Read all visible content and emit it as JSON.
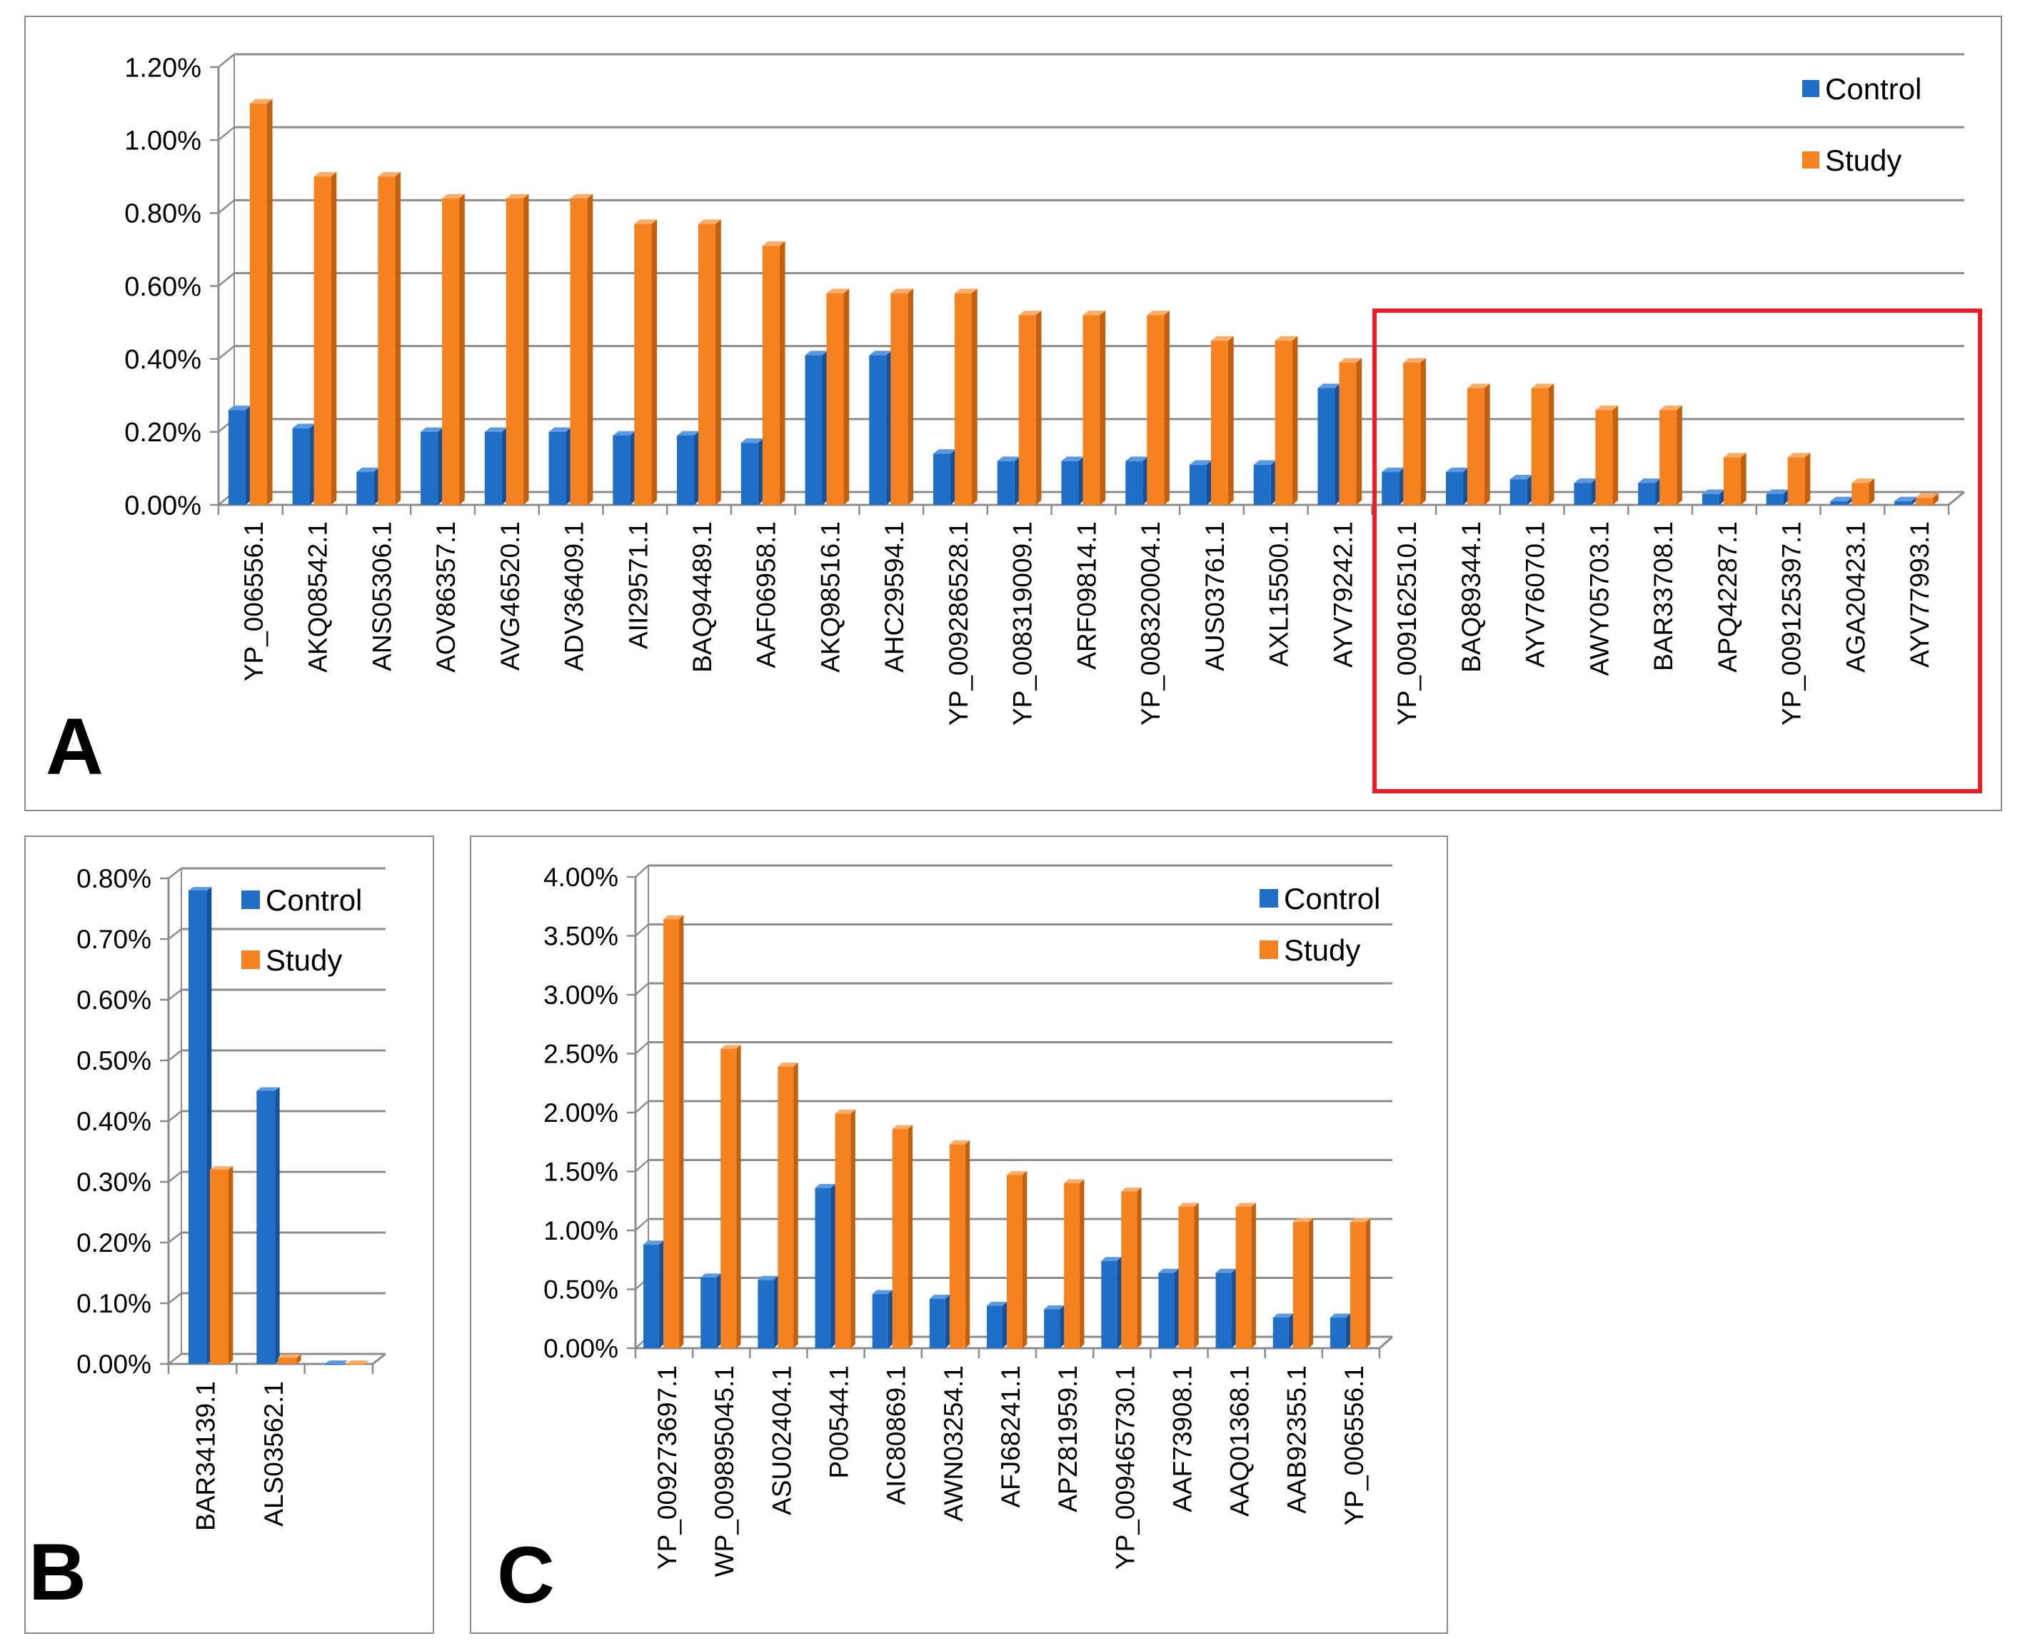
{
  "colors": {
    "control": "#1f6fc8",
    "control_side": "#15509a",
    "control_top": "#5a9ae0",
    "study": "#f5821f",
    "study_side": "#c45f0c",
    "study_top": "#f9ad68",
    "grid": "#8c8c8c",
    "highlight": "#ee1c25"
  },
  "chart_data": [
    {
      "id": "A",
      "type": "bar",
      "panel_label": "A",
      "title": "",
      "xlabel": "",
      "ylabel": "",
      "ylim": [
        0,
        0.012
      ],
      "yticks": [
        "0.00%",
        "0.20%",
        "0.40%",
        "0.60%",
        "0.80%",
        "1.00%",
        "1.20%"
      ],
      "legend": [
        "Control",
        "Study"
      ],
      "legend_position": "top-right",
      "categories": [
        "YP_006556.1",
        "AKQ08542.1",
        "ANS05306.1",
        "AOV86357.1",
        "AVG46520.1",
        "ADV36409.1",
        "AII29571.1",
        "BAQ94489.1",
        "AAF06958.1",
        "AKQ98516.1",
        "AHC29594.1",
        "YP_009286528.1",
        "YP_008319009.1",
        "ARF09814.1",
        "YP_008320004.1",
        "AUS03761.1",
        "AXL15500.1",
        "AYV79242.1",
        "YP_009162510.1",
        "BAQ89344.1",
        "AYV76070.1",
        "AWY05703.1",
        "BAR33708.1",
        "APQ42287.1",
        "YP_009125397.1",
        "AGA20423.1",
        "AYV77993.1"
      ],
      "series": [
        {
          "name": "Control",
          "values": [
            0.0026,
            0.0021,
            0.0009,
            0.002,
            0.002,
            0.002,
            0.0019,
            0.0019,
            0.0017,
            0.0041,
            0.0041,
            0.0014,
            0.0012,
            0.0012,
            0.0012,
            0.0011,
            0.0011,
            0.0032,
            0.0009,
            0.0009,
            0.0007,
            0.0006,
            0.0006,
            0.0003,
            0.0003,
            0.0001,
            0.0001
          ]
        },
        {
          "name": "Study",
          "values": [
            0.011,
            0.009,
            0.009,
            0.0084,
            0.0084,
            0.0084,
            0.0077,
            0.0077,
            0.0071,
            0.0058,
            0.0058,
            0.0058,
            0.0052,
            0.0052,
            0.0052,
            0.0045,
            0.0045,
            0.0039,
            0.0039,
            0.0032,
            0.0032,
            0.0026,
            0.0026,
            0.0013,
            0.0013,
            0.0006,
            0.0002
          ]
        }
      ],
      "highlight_range": [
        18,
        26
      ]
    },
    {
      "id": "B",
      "type": "bar",
      "panel_label": "B",
      "title": "",
      "xlabel": "",
      "ylabel": "",
      "ylim": [
        0,
        0.008
      ],
      "yticks": [
        "0.00%",
        "0.10%",
        "0.20%",
        "0.30%",
        "0.40%",
        "0.50%",
        "0.60%",
        "0.70%",
        "0.80%"
      ],
      "legend": [
        "Control",
        "Study"
      ],
      "legend_position": "top-right",
      "categories": [
        "BAR34139.1",
        "ALS03562.1",
        ""
      ],
      "series": [
        {
          "name": "Control",
          "values": [
            0.0078,
            0.0045,
            0.0
          ]
        },
        {
          "name": "Study",
          "values": [
            0.0032,
            0.0001,
            0.0
          ]
        }
      ]
    },
    {
      "id": "C",
      "type": "bar",
      "panel_label": "C",
      "title": "",
      "xlabel": "",
      "ylabel": "",
      "ylim": [
        0,
        0.04
      ],
      "yticks": [
        "0.00%",
        "0.50%",
        "1.00%",
        "1.50%",
        "2.00%",
        "2.50%",
        "3.00%",
        "3.50%",
        "4.00%"
      ],
      "legend": [
        "Control",
        "Study"
      ],
      "legend_position": "top-right",
      "categories": [
        "YP_009273697.1",
        "WP_009895045.1",
        "ASU02404.1",
        "P00544.1",
        "AIC80869.1",
        "AWN03254.1",
        "AFJ68241.1",
        "APZ81959.1",
        "YP_009465730.1",
        "AAF73908.1",
        "AAQ01368.1",
        "AAB92355.1",
        "YP_006556.1"
      ],
      "series": [
        {
          "name": "Control",
          "values": [
            0.0088,
            0.006,
            0.0058,
            0.0136,
            0.0046,
            0.0042,
            0.0036,
            0.0033,
            0.0074,
            0.0064,
            0.0064,
            0.0026,
            0.0026
          ]
        },
        {
          "name": "Study",
          "values": [
            0.0364,
            0.0254,
            0.0239,
            0.0199,
            0.0186,
            0.0173,
            0.0147,
            0.014,
            0.0133,
            0.012,
            0.012,
            0.0107,
            0.0107
          ]
        }
      ]
    }
  ]
}
